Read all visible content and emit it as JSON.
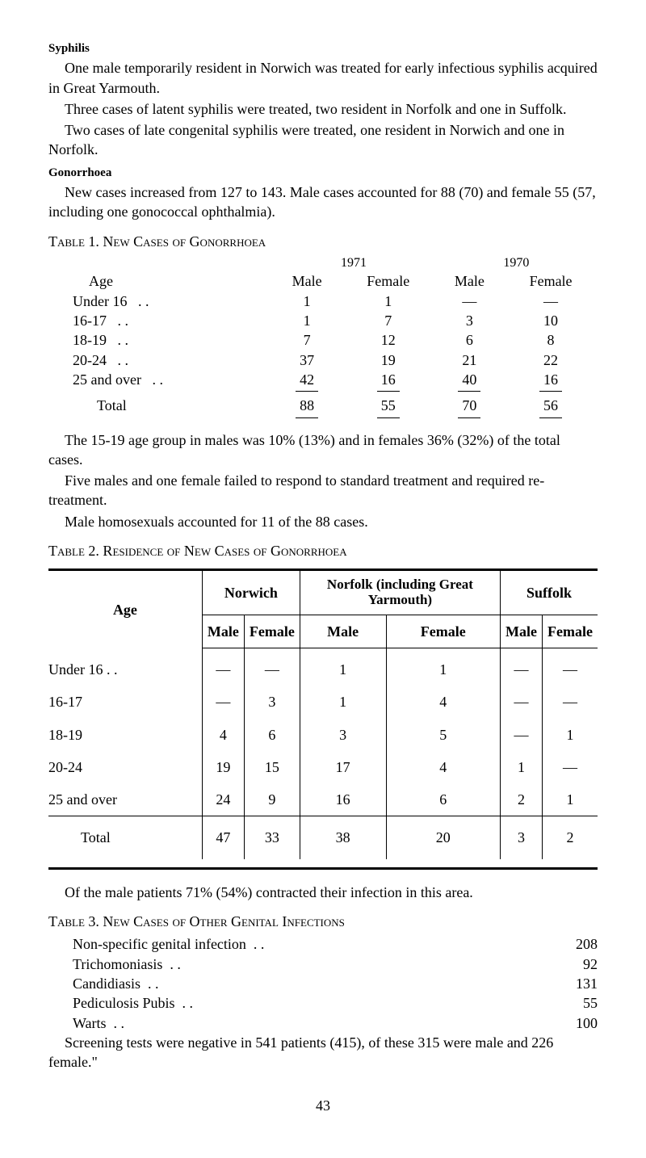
{
  "syphilis": {
    "heading": "Syphilis",
    "p1": "One male temporarily resident in Norwich was treated for early infectious syphilis acquired in Great Yarmouth.",
    "p2": "Three cases of latent syphilis were treated, two resident in Norfolk and one in Suffolk.",
    "p3": "Two cases of late congenital syphilis were treated, one resident in Norwich and one in Norfolk."
  },
  "gonorrhoea": {
    "heading": "Gonorrhoea",
    "p1": "New cases increased from 127 to 143. Male cases accounted for 88 (70) and female 55 (57, including one gonococcal ophthalmia)."
  },
  "table1": {
    "title": "Table 1.  New Cases of Gonorrhoea",
    "year1": "1971",
    "year2": "1970",
    "col_age": "Age",
    "col_male": "Male",
    "col_female": "Female",
    "rows": [
      {
        "age": "Under 16",
        "m1": "1",
        "f1": "1",
        "m2": "—",
        "f2": "—"
      },
      {
        "age": "16-17",
        "m1": "1",
        "f1": "7",
        "m2": "3",
        "f2": "10"
      },
      {
        "age": "18-19",
        "m1": "7",
        "f1": "12",
        "m2": "6",
        "f2": "8"
      },
      {
        "age": "20-24",
        "m1": "37",
        "f1": "19",
        "m2": "21",
        "f2": "22"
      },
      {
        "age": "25 and over",
        "m1": "42",
        "f1": "16",
        "m2": "40",
        "f2": "16"
      }
    ],
    "total_label": "Total",
    "total": {
      "m1": "88",
      "f1": "55",
      "m2": "70",
      "f2": "56"
    },
    "after1": "The 15-19 age group in males was 10% (13%) and in females 36% (32%) of the total cases.",
    "after2": "Five males and one female failed to respond to standard treatment and required re-treatment.",
    "after3": "Male homosexuals accounted for 11 of the 88 cases."
  },
  "table2": {
    "title": "Table 2.  Residence of New Cases of Gonorrhoea",
    "col_age": "Age",
    "groups": [
      "Norwich",
      "Norfolk (including Great Yarmouth)",
      "Suffolk"
    ],
    "sub_male": "Male",
    "sub_female": "Female",
    "rows": [
      {
        "age": "Under 16 . .",
        "vals": [
          "—",
          "—",
          "1",
          "1",
          "—",
          "—"
        ]
      },
      {
        "age": "16-17",
        "vals": [
          "—",
          "3",
          "1",
          "4",
          "—",
          "—"
        ]
      },
      {
        "age": "18-19",
        "vals": [
          "4",
          "6",
          "3",
          "5",
          "—",
          "1"
        ]
      },
      {
        "age": "20-24",
        "vals": [
          "19",
          "15",
          "17",
          "4",
          "1",
          "—"
        ]
      },
      {
        "age": "25 and over",
        "vals": [
          "24",
          "9",
          "16",
          "6",
          "2",
          "1"
        ]
      }
    ],
    "total_label": "Total",
    "total": [
      "47",
      "33",
      "38",
      "20",
      "3",
      "2"
    ],
    "after": "Of the male patients 71% (54%) contracted their infection in this area."
  },
  "table3": {
    "title": "Table 3.  New Cases of Other Genital Infections",
    "rows": [
      {
        "label": "Non-specific genital infection",
        "val": "208"
      },
      {
        "label": "Trichomoniasis",
        "val": "92"
      },
      {
        "label": "Candidiasis",
        "val": "131"
      },
      {
        "label": "Pediculosis Pubis",
        "val": "55"
      },
      {
        "label": "Warts",
        "val": "100"
      }
    ],
    "after": "Screening tests were negative in 541 patients (415), of these 315 were male and 226 female.\""
  },
  "page_number": "43"
}
